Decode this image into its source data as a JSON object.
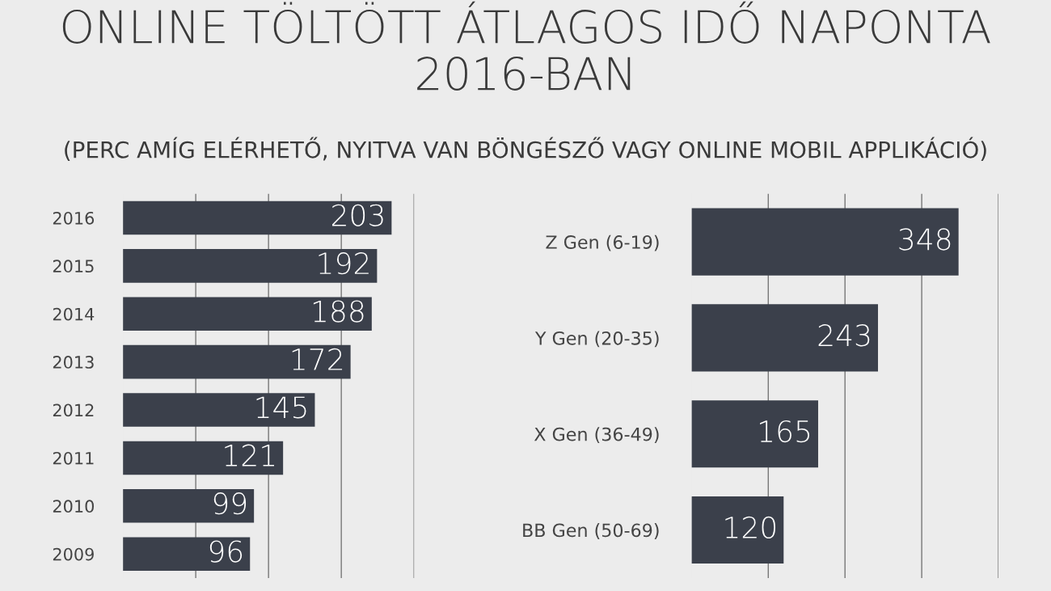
{
  "chart_data": [
    {
      "type": "bar",
      "orientation": "horizontal",
      "title": "ONLINE TÖLTÖTT ÁTLAGOS IDŐ NAPONTA 2016-BAN",
      "subtitle": "(PERC AMÍG ELÉRHETŐ, NYITVA VAN BÖNGÉSZŐ VAGY ONLINE MOBIL APPLIKÁCIÓ)",
      "categories": [
        "2016",
        "2015",
        "2014",
        "2013",
        "2012",
        "2011",
        "2010",
        "2009"
      ],
      "values": [
        203,
        192,
        188,
        172,
        145,
        121,
        99,
        96
      ],
      "color": "#3b404b",
      "xlim": [
        0,
        220
      ],
      "xticks": [
        {
          "value": 55,
          "label": null
        },
        {
          "value": 110,
          "label": null
        },
        {
          "value": 165,
          "label": null
        },
        {
          "value": 220,
          "label": null
        }
      ],
      "grid": "x",
      "tick_labels": "y",
      "data_labels": true
    },
    {
      "type": "bar",
      "orientation": "horizontal",
      "categories": [
        "Z Gen (6-19)",
        "Y Gen (20-35)",
        "X Gen (36-49)",
        "BB Gen (50-69)"
      ],
      "values": [
        348,
        243,
        165,
        120
      ],
      "color": "#3b404b",
      "xlim": [
        0,
        400
      ],
      "xticks": [
        {
          "value": 100,
          "label": null
        },
        {
          "value": 200,
          "label": null
        },
        {
          "value": 300,
          "label": null
        },
        {
          "value": 400,
          "label": null
        }
      ],
      "grid": "x",
      "tick_labels": "y",
      "data_labels": true
    }
  ]
}
